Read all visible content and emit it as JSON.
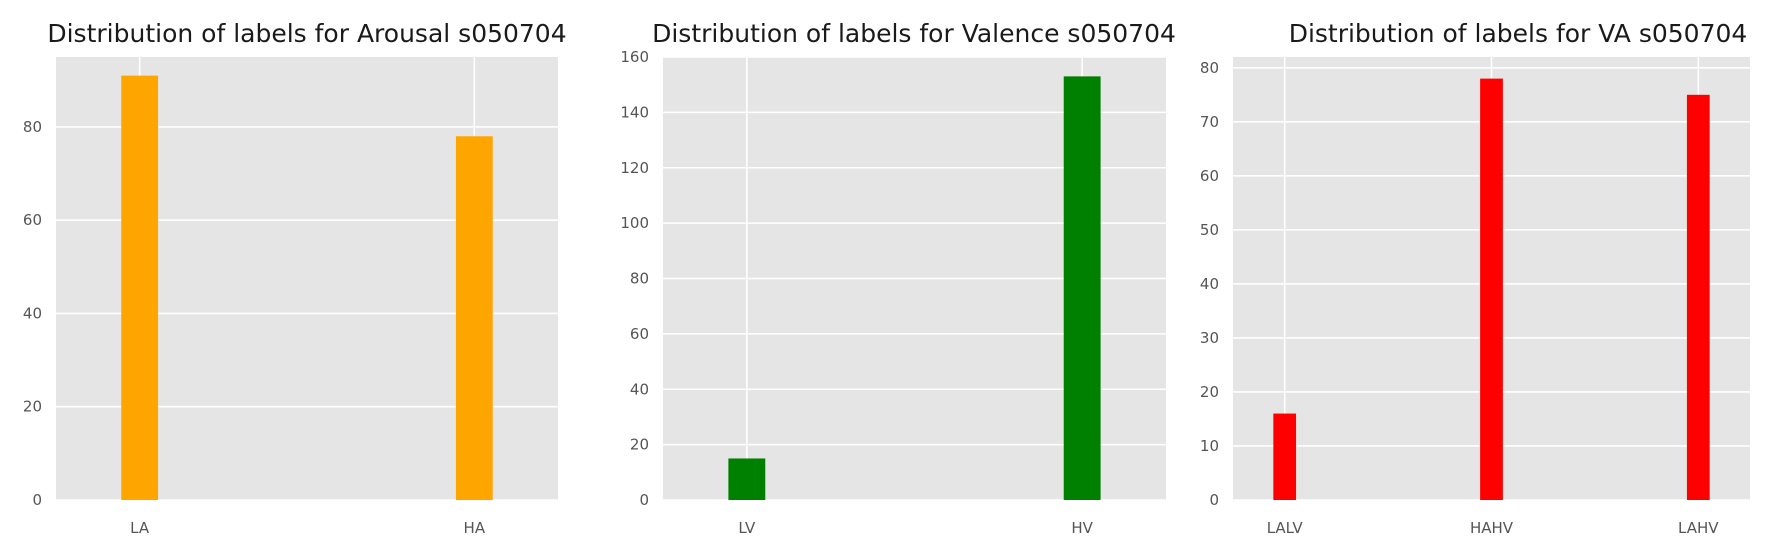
{
  "chart_data": [
    {
      "type": "bar",
      "title": "Distribution of labels for Arousal s050704",
      "xlabel": "",
      "ylabel": "",
      "categories": [
        "LA",
        "HA"
      ],
      "values": [
        91,
        78
      ],
      "color": "#FFA500",
      "xlim": [
        -0.25,
        1.25
      ],
      "ylim": [
        0,
        95
      ],
      "yticks": [
        0,
        20,
        40,
        60,
        80
      ],
      "grid": true,
      "background": "#E5E5E5"
    },
    {
      "type": "bar",
      "title": "Distribution of labels for Valence s050704",
      "xlabel": "",
      "ylabel": "",
      "categories": [
        "LV",
        "HV"
      ],
      "values": [
        15,
        153
      ],
      "color": "#008000",
      "xlim": [
        -0.25,
        1.25
      ],
      "ylim": [
        0,
        160
      ],
      "yticks": [
        0,
        20,
        40,
        60,
        80,
        100,
        120,
        140,
        160
      ],
      "grid": true,
      "background": "#E5E5E5"
    },
    {
      "type": "bar",
      "title": "Distribution of labels for VA s050704",
      "xlabel": "",
      "ylabel": "",
      "categories": [
        "LALV",
        "HAHV",
        "LAHV"
      ],
      "values": [
        16,
        78,
        75
      ],
      "color": "#FF0000",
      "xlim": [
        -0.25,
        2.25
      ],
      "ylim": [
        0,
        82
      ],
      "yticks": [
        0,
        10,
        20,
        30,
        40,
        50,
        60,
        70,
        80
      ],
      "grid": true,
      "background": "#E5E5E5"
    }
  ]
}
